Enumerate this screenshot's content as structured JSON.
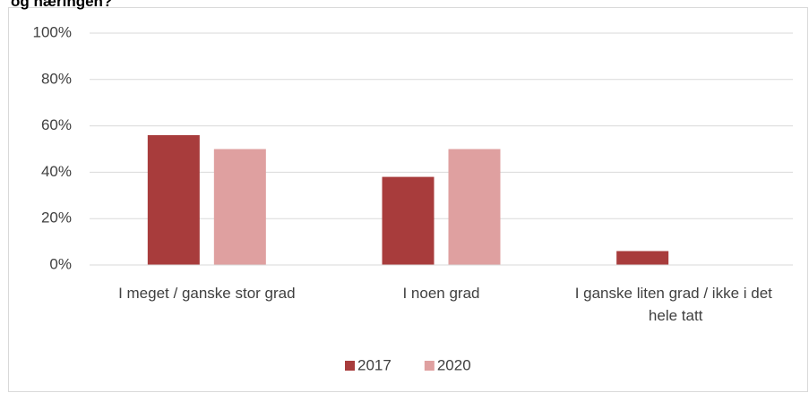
{
  "chart_data": {
    "type": "bar",
    "title": "og næringen?",
    "categories": [
      "I meget / ganske stor grad",
      "I noen grad",
      "I ganske liten grad / ikke i det hele tatt"
    ],
    "series": [
      {
        "name": "2017",
        "color": "#a83c3c",
        "values": [
          56,
          38,
          6
        ]
      },
      {
        "name": "2020",
        "color": "#dfa0a0",
        "values": [
          50,
          50,
          0
        ]
      }
    ],
    "ylim": [
      0,
      100
    ],
    "yticks": [
      {
        "value": 0,
        "label": "0%"
      },
      {
        "value": 20,
        "label": "20%"
      },
      {
        "value": 40,
        "label": "40%"
      },
      {
        "value": 60,
        "label": "60%"
      },
      {
        "value": 80,
        "label": "80%"
      },
      {
        "value": 100,
        "label": "100%"
      }
    ],
    "grid": true,
    "legend": "bottom"
  }
}
